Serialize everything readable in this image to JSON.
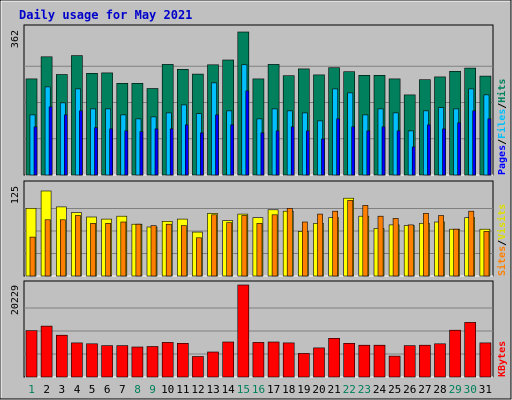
{
  "chart_data": {
    "type": "bar",
    "title": "Daily usage for May 2021",
    "categories": [
      "1",
      "2",
      "3",
      "4",
      "5",
      "6",
      "7",
      "8",
      "9",
      "10",
      "11",
      "12",
      "13",
      "14",
      "15",
      "16",
      "17",
      "18",
      "19",
      "20",
      "21",
      "22",
      "23",
      "24",
      "25",
      "26",
      "27",
      "28",
      "29",
      "30",
      "31"
    ],
    "weekend_days": [
      1,
      8,
      9,
      15,
      16,
      22,
      23,
      29,
      30
    ],
    "panels": [
      {
        "name": "hits-files-pages",
        "y_max": 362,
        "y_max_label": "362",
        "legend": [
          "Pages",
          "/",
          "Files",
          "/",
          "Hits"
        ],
        "series": [
          {
            "name": "Hits",
            "color": "#00805c",
            "values": [
              240,
              295,
              251,
              298,
              254,
              255,
              229,
              229,
              216,
              276,
              264,
              252,
              275,
              287,
              357,
              240,
              276,
              248,
              265,
              250,
              268,
              258,
              249,
              249,
              240,
              200,
              238,
              245,
              259,
              267,
              247
            ]
          },
          {
            "name": "Files",
            "color": "#00bfff",
            "values": [
              150,
              220,
              180,
              215,
              165,
              165,
              150,
              140,
              145,
              155,
              175,
              153,
              230,
              160,
              275,
              140,
              165,
              160,
              155,
              135,
              215,
              205,
              150,
              165,
              155,
              110,
              160,
              168,
              165,
              215,
              200
            ]
          },
          {
            "name": "Pages",
            "color": "#0000ff",
            "values": [
              120,
              170,
              150,
              160,
              118,
              115,
              110,
              108,
              115,
              115,
              125,
              105,
              150,
              125,
              210,
              105,
              110,
              120,
              110,
              90,
              140,
              120,
              110,
              120,
              110,
              70,
              125,
              115,
              130,
              160,
              140
            ]
          }
        ]
      },
      {
        "name": "sites-visits",
        "y_max": 125,
        "y_max_label": "125",
        "legend": [
          "Sites",
          "/",
          "Visits"
        ],
        "series": [
          {
            "name": "Visits",
            "color": "#ffff00",
            "values": [
              94,
              118,
              96,
              88,
              82,
              79,
              83,
              72,
              68,
              76,
              79,
              61,
              87,
              77,
              86,
              81,
              92,
              90,
              62,
              73,
              81,
              108,
              83,
              66,
              71,
              70,
              73,
              75,
              65,
              81,
              65
            ]
          },
          {
            "name": "Sites",
            "color": "#ff8000",
            "values": [
              54,
              78,
              78,
              84,
              73,
              73,
              75,
              72,
              70,
              72,
              70,
              53,
              85,
              74,
              84,
              73,
              85,
              94,
              75,
              86,
              90,
              105,
              98,
              83,
              80,
              71,
              87,
              84,
              65,
              90,
              62
            ]
          }
        ]
      },
      {
        "name": "kbytes",
        "y_max": 20229,
        "y_max_label": "20229",
        "legend": [
          "KBytes"
        ],
        "series": [
          {
            "name": "KBytes",
            "color": "#ff0000",
            "values": [
              10200,
              11200,
              9200,
              7500,
              7300,
              6900,
              6900,
              6600,
              6700,
              7600,
              7400,
              4500,
              5500,
              7700,
              20229,
              7600,
              7700,
              7500,
              5200,
              6400,
              8500,
              7400,
              7000,
              7000,
              4600,
              6900,
              7000,
              7300,
              10300,
              12000,
              7500
            ]
          }
        ]
      }
    ]
  }
}
